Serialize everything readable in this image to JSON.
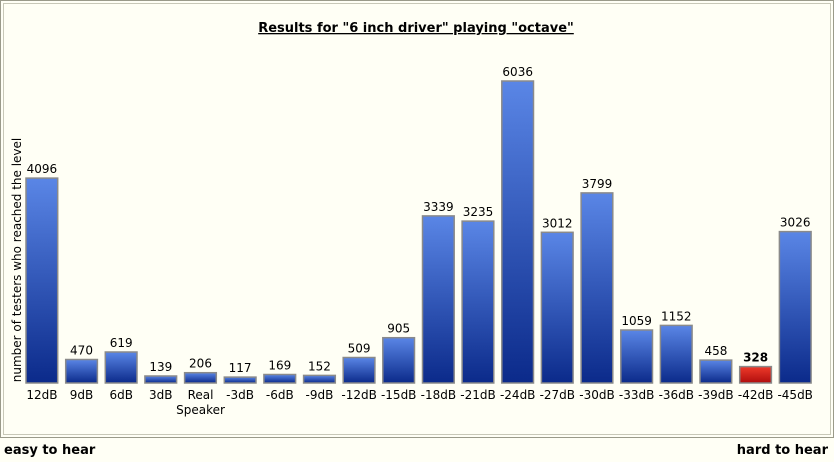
{
  "chart_data": {
    "type": "bar",
    "title": "Results for \"6 inch driver\" playing \"octave\"",
    "ylabel": "number of testers who reached the level",
    "xlabel": "",
    "categories": [
      "12dB",
      "9dB",
      "6dB",
      "3dB",
      "Real Speaker",
      "-3dB",
      "-6dB",
      "-9dB",
      "-12dB",
      "-15dB",
      "-18dB",
      "-21dB",
      "-24dB",
      "-27dB",
      "-30dB",
      "-33dB",
      "-36dB",
      "-39dB",
      "-42dB",
      "-45dB"
    ],
    "values": [
      4096,
      470,
      619,
      139,
      206,
      117,
      169,
      152,
      509,
      905,
      3339,
      3235,
      6036,
      3012,
      3799,
      1059,
      1152,
      458,
      328,
      3026
    ],
    "highlight_index": 18,
    "ylim": [
      0,
      6036
    ],
    "grid": false,
    "colors": {
      "bar_top": "#5a86e6",
      "bar_bottom": "#0b2a8a",
      "highlight_top": "#ee3a2a",
      "highlight_bottom": "#b00d0d",
      "frame": "#9a9a8a",
      "background": "#fffff5"
    }
  },
  "footer": {
    "left": "easy to hear",
    "right": "hard to hear"
  }
}
